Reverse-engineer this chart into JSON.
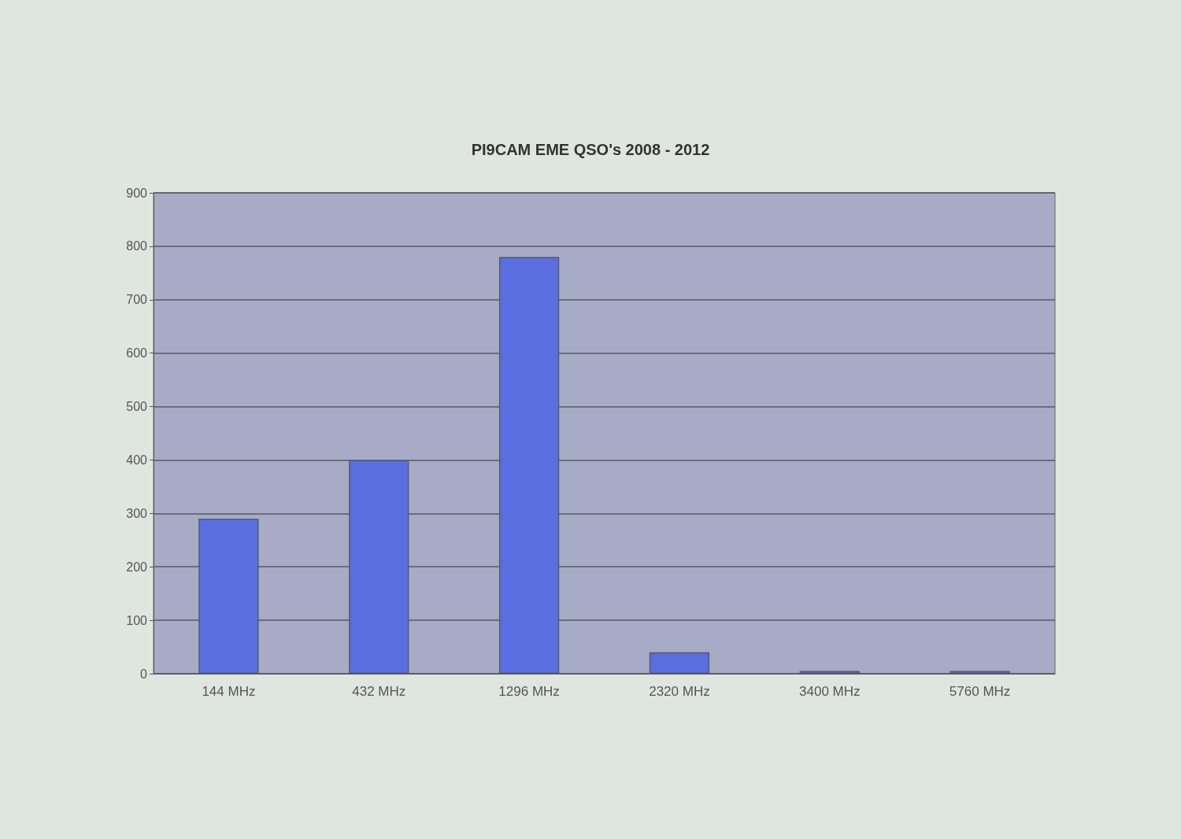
{
  "chart_data": {
    "type": "bar",
    "title": "PI9CAM EME QSO's 2008 - 2012",
    "categories": [
      "144 MHz",
      "432 MHz",
      "1296 MHz",
      "2320 MHz",
      "3400 MHz",
      "5760 MHz"
    ],
    "values": [
      290,
      400,
      780,
      40,
      5,
      5
    ],
    "color": "#5b6ee0",
    "ylim": [
      0,
      900
    ],
    "yticks": [
      0,
      100,
      200,
      300,
      400,
      500,
      600,
      700,
      800,
      900
    ],
    "grid": "y"
  }
}
